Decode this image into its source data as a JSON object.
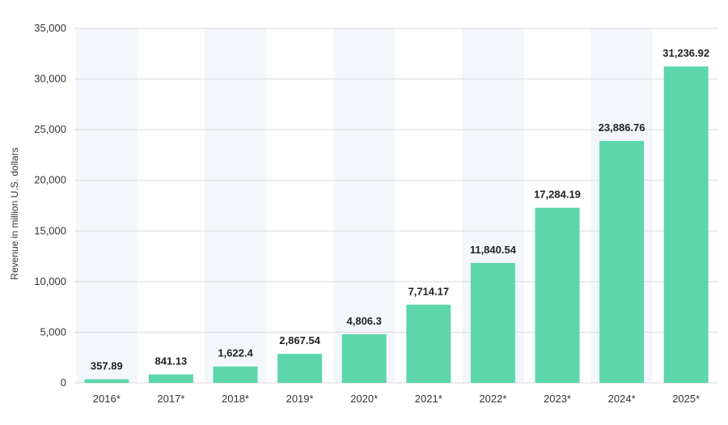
{
  "chart_data": {
    "type": "bar",
    "title": "",
    "xlabel": "",
    "ylabel": "Revenue in million U.S. dollars",
    "categories": [
      "2016*",
      "2017*",
      "2018*",
      "2019*",
      "2020*",
      "2021*",
      "2022*",
      "2023*",
      "2024*",
      "2025*"
    ],
    "values": [
      357.89,
      841.13,
      1622.4,
      2867.54,
      4806.3,
      7714.17,
      11840.54,
      17284.19,
      23886.76,
      31236.92
    ],
    "value_labels": [
      "357.89",
      "841.13",
      "1,622.4",
      "2,867.54",
      "4,806.3",
      "7,714.17",
      "11,840.54",
      "17,284.19",
      "23,886.76",
      "31,236.92"
    ],
    "ylim": [
      0,
      35000
    ],
    "yticks": [
      0,
      5000,
      10000,
      15000,
      20000,
      25000,
      30000,
      35000
    ],
    "ytick_labels": [
      "0",
      "5,000",
      "10,000",
      "15,000",
      "20,000",
      "25,000",
      "30,000",
      "35,000"
    ],
    "grid": true,
    "bar_color": "#5cd6aa",
    "band_color": "#f3f6fb"
  }
}
